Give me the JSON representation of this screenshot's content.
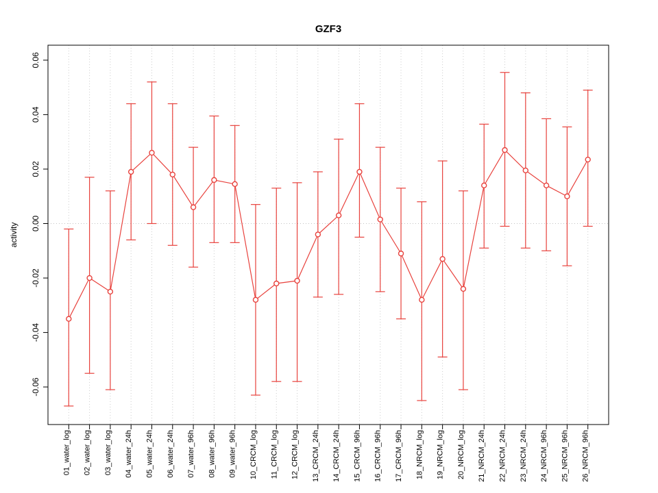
{
  "chart_data": {
    "type": "line",
    "title": "GZF3",
    "xlabel": "",
    "ylabel": "activity",
    "ylim": [
      -0.0738,
      0.0655
    ],
    "yticks": [
      -0.06,
      -0.04,
      -0.02,
      0.0,
      0.02,
      0.04,
      0.06
    ],
    "grid": true,
    "legend": "none",
    "point_style": "open-circle",
    "series_color": "#e8413c",
    "grid_color": "#cccccc",
    "zero_line_color": "#c0c0c0",
    "categories": [
      "01_water_log",
      "02_water_log",
      "03_water_log",
      "04_water_24h",
      "05_water_24h",
      "06_water_24h",
      "07_water_96h",
      "08_water_96h",
      "09_water_96h",
      "10_CRCM_log",
      "11_CRCM_log",
      "12_CRCM_log",
      "13_CRCM_24h",
      "14_CRCM_24h",
      "15_CRCM_96h",
      "16_CRCM_96h",
      "17_CRCM_96h",
      "18_NRCM_log",
      "19_NRCM_log",
      "20_NRCM_log",
      "21_NRCM_24h",
      "22_NRCM_24h",
      "23_NRCM_24h",
      "24_NRCM_96h",
      "25_NRCM_96h",
      "26_NRCM_96h"
    ],
    "values": [
      -0.035,
      -0.02,
      -0.025,
      0.019,
      0.026,
      0.018,
      0.006,
      0.016,
      0.0145,
      -0.028,
      -0.022,
      -0.021,
      -0.004,
      0.003,
      0.019,
      0.0015,
      -0.011,
      -0.028,
      -0.013,
      -0.024,
      0.014,
      0.027,
      0.0195,
      0.014,
      0.01,
      0.0235
    ],
    "error_low": [
      -0.067,
      -0.055,
      -0.061,
      -0.006,
      0.0,
      -0.008,
      -0.016,
      -0.007,
      -0.007,
      -0.063,
      -0.058,
      -0.058,
      -0.027,
      -0.026,
      -0.005,
      -0.025,
      -0.035,
      -0.065,
      -0.049,
      -0.061,
      -0.009,
      -0.001,
      -0.009,
      -0.01,
      -0.0155,
      -0.001
    ],
    "error_high": [
      -0.002,
      0.017,
      0.012,
      0.044,
      0.052,
      0.044,
      0.028,
      0.0395,
      0.036,
      0.007,
      0.013,
      0.015,
      0.019,
      0.031,
      0.044,
      0.028,
      0.013,
      0.008,
      0.023,
      0.012,
      0.0365,
      0.0555,
      0.048,
      0.0385,
      0.0355,
      0.049
    ]
  }
}
